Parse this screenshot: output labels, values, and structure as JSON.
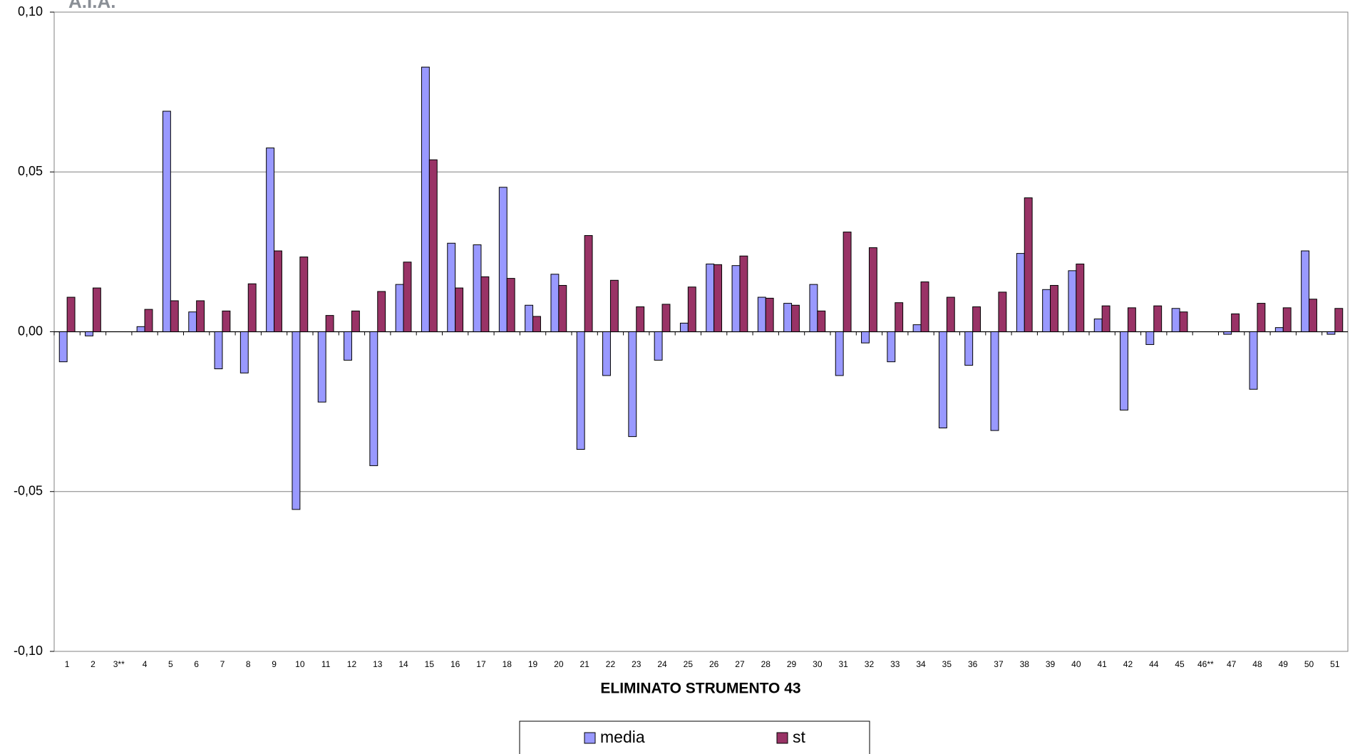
{
  "logo": "A.I.A.",
  "chart_data": {
    "type": "bar",
    "x_label": "ELIMINATO STRUMENTO 43",
    "categories": [
      "1",
      "2",
      "3**",
      "4",
      "5",
      "6",
      "7",
      "8",
      "9",
      "10",
      "11",
      "12",
      "13",
      "14",
      "15",
      "16",
      "17",
      "18",
      "19",
      "20",
      "21",
      "22",
      "23",
      "24",
      "25",
      "26",
      "27",
      "28",
      "29",
      "30",
      "31",
      "32",
      "33",
      "34",
      "35",
      "36",
      "37",
      "38",
      "39",
      "40",
      "41",
      "42",
      "44",
      "45",
      "46**",
      "47",
      "48",
      "49",
      "50",
      "51"
    ],
    "series": [
      {
        "name": "media",
        "color": "#9999ff",
        "values": [
          -0.0094,
          -0.0013,
          null,
          0.0016,
          0.069,
          0.0062,
          -0.0116,
          -0.0129,
          0.0575,
          -0.0556,
          -0.022,
          -0.0089,
          -0.0419,
          0.0148,
          0.0828,
          0.0277,
          0.0272,
          0.0452,
          0.0083,
          0.018,
          -0.0368,
          -0.0137,
          -0.0328,
          -0.0089,
          0.0027,
          0.0212,
          0.0207,
          0.0108,
          0.0089,
          0.0148,
          -0.0137,
          -0.0035,
          -0.0094,
          0.0022,
          -0.0301,
          -0.0105,
          -0.0309,
          0.0245,
          0.0132,
          0.0191,
          0.004,
          -0.0245,
          -0.004,
          0.0073,
          null,
          -0.0008,
          -0.018,
          0.0013,
          0.0253,
          -0.0008
        ]
      },
      {
        "name": "st",
        "color": "#993366",
        "values": [
          0.0108,
          0.0137,
          null,
          0.007,
          0.0097,
          0.0097,
          0.0065,
          0.015,
          0.0253,
          0.0234,
          0.0051,
          0.0065,
          0.0126,
          0.0218,
          0.0538,
          0.0137,
          0.0172,
          0.0167,
          0.0048,
          0.0145,
          0.0301,
          0.0161,
          0.0078,
          0.0086,
          0.014,
          0.021,
          0.0237,
          0.0105,
          0.0083,
          0.0065,
          0.0312,
          0.0263,
          0.0091,
          0.0156,
          0.0108,
          0.0078,
          0.0124,
          0.0419,
          0.0145,
          0.0212,
          0.0081,
          0.0075,
          0.0081,
          0.0062,
          null,
          0.0056,
          0.0089,
          0.0075,
          0.0102,
          0.0073
        ]
      }
    ],
    "ylim": [
      -0.1,
      0.1
    ],
    "yticks": [
      {
        "value": -0.1,
        "label": "-0,10"
      },
      {
        "value": -0.05,
        "label": "-0,05"
      },
      {
        "value": 0,
        "label": "0,00"
      },
      {
        "value": 0.05,
        "label": "0,05"
      },
      {
        "value": 0.1,
        "label": "0,10"
      }
    ],
    "grid": true,
    "legend": "bottom"
  }
}
